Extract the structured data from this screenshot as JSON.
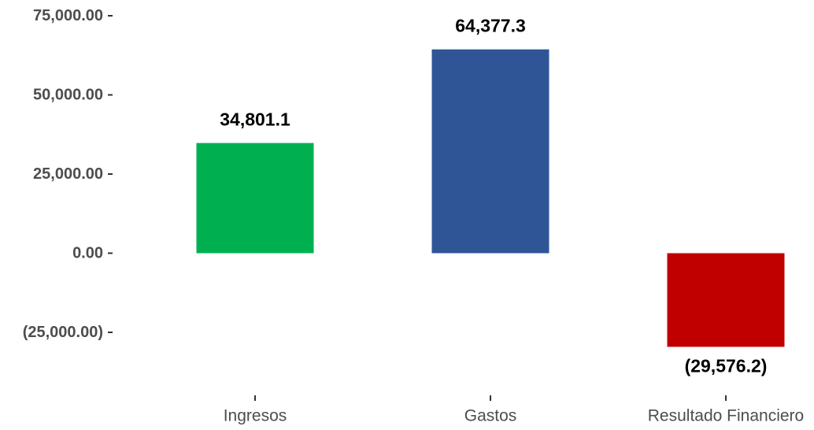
{
  "chart_data": {
    "type": "bar",
    "categories": [
      "Ingresos",
      "Gastos",
      "Resultado Financiero"
    ],
    "values": [
      34801.1,
      64377.3,
      -29576.2
    ],
    "data_labels": [
      "34,801.1",
      "64,377.3",
      "(29,576.2)"
    ],
    "colors": [
      "#00b050",
      "#2f5597",
      "#c00000"
    ],
    "yticks": [
      75000,
      50000,
      25000,
      0,
      -25000
    ],
    "ytick_labels": [
      "75,000.00",
      "50,000.00",
      "25,000.00",
      "0.00",
      "(25,000.00)"
    ],
    "ylim": [
      -40000,
      75000
    ],
    "grid": false,
    "legend": false
  }
}
